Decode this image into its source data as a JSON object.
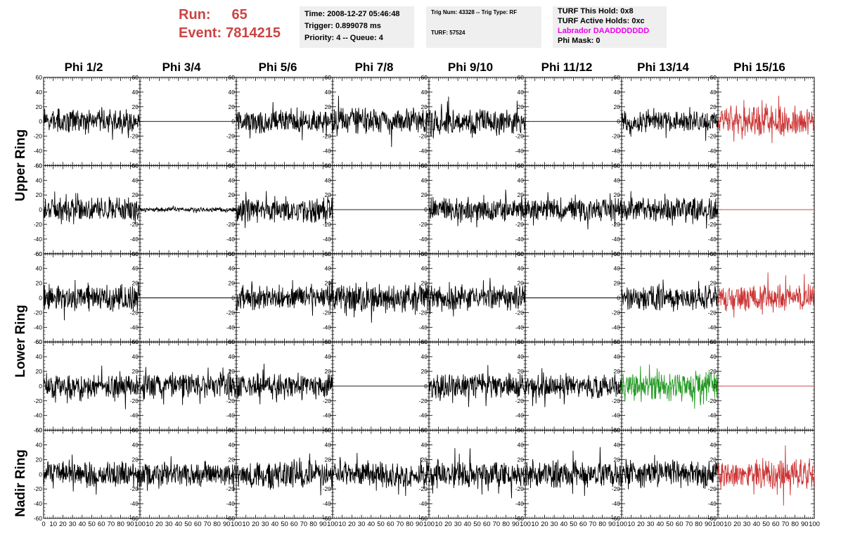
{
  "header": {
    "run_label": "Run:",
    "run_value": "65",
    "event_label": "Event:",
    "event_value": "7814215"
  },
  "info_time": {
    "time": "Time: 2008-12-27 05:46:48",
    "trigger": "Trigger: 0.899078 ms",
    "priority": "Priority: 4 -- Queue: 4"
  },
  "info_trig": {
    "trig": "Trig Num: 43328 -- Trig Type: RF",
    "turf": "TURF: 57524"
  },
  "info_turf": {
    "hold": "TURF This Hold: 0x8",
    "active": "TURF Active Holds: 0xc",
    "labrador": "Labrador DAADDDDDDD",
    "phimask": "Phi Mask: 0"
  },
  "colors": {
    "trace_default": "#000000",
    "trace_triggered": "#cc3333",
    "trace_green": "#229922",
    "labrador": "#ee00ee",
    "run_event": "#cc4444"
  },
  "columns": [
    "Phi 1/2",
    "Phi 3/4",
    "Phi 5/6",
    "Phi 7/8",
    "Phi 9/10",
    "Phi 11/12",
    "Phi 13/14",
    "Phi 15/16"
  ],
  "ring_labels": {
    "upper": "Upper Ring",
    "lower": "Lower Ring",
    "nadir": "Nadir Ring"
  },
  "chart_data": {
    "type": "line",
    "grid": false,
    "ylim": [
      -60,
      60
    ],
    "xlim": [
      0,
      100
    ],
    "yticks": [
      -60,
      -40,
      -20,
      0,
      20,
      40,
      60
    ],
    "xticks": [
      0,
      10,
      20,
      30,
      40,
      50,
      60,
      70,
      80,
      90,
      100
    ],
    "xtick_labels": [
      "0",
      "10",
      "20",
      "30",
      "40",
      "50",
      "60",
      "70",
      "80",
      "90",
      "100"
    ],
    "rows": 5,
    "cols": 8,
    "panels_note_style": "noise",
    "panels": [
      {
        "row": 0,
        "col": 0,
        "style": "noise",
        "amp": 16,
        "color": "default"
      },
      {
        "row": 0,
        "col": 1,
        "style": "flat",
        "amp": 0,
        "color": "default"
      },
      {
        "row": 0,
        "col": 2,
        "style": "noise",
        "amp": 16,
        "color": "default"
      },
      {
        "row": 0,
        "col": 3,
        "style": "noise",
        "amp": 18,
        "color": "default"
      },
      {
        "row": 0,
        "col": 4,
        "style": "noise",
        "amp": 18,
        "color": "default"
      },
      {
        "row": 0,
        "col": 5,
        "style": "flat",
        "amp": 0,
        "color": "default"
      },
      {
        "row": 0,
        "col": 6,
        "style": "noise",
        "amp": 14,
        "color": "default"
      },
      {
        "row": 0,
        "col": 7,
        "style": "noise",
        "amp": 22,
        "color": "triggered"
      },
      {
        "row": 1,
        "col": 0,
        "style": "noise",
        "amp": 16,
        "color": "default"
      },
      {
        "row": 1,
        "col": 1,
        "style": "noise",
        "amp": 3,
        "color": "default"
      },
      {
        "row": 1,
        "col": 2,
        "style": "noise",
        "amp": 17,
        "color": "default"
      },
      {
        "row": 1,
        "col": 3,
        "style": "flat",
        "amp": 0,
        "color": "default"
      },
      {
        "row": 1,
        "col": 4,
        "style": "noise",
        "amp": 16,
        "color": "default"
      },
      {
        "row": 1,
        "col": 5,
        "style": "noise",
        "amp": 16,
        "color": "default"
      },
      {
        "row": 1,
        "col": 6,
        "style": "noise",
        "amp": 16,
        "color": "default"
      },
      {
        "row": 1,
        "col": 7,
        "style": "flat",
        "amp": 0,
        "color": "triggered"
      },
      {
        "row": 2,
        "col": 0,
        "style": "noise",
        "amp": 18,
        "color": "default"
      },
      {
        "row": 2,
        "col": 1,
        "style": "flat",
        "amp": 0,
        "color": "default"
      },
      {
        "row": 2,
        "col": 2,
        "style": "noise",
        "amp": 16,
        "color": "default"
      },
      {
        "row": 2,
        "col": 3,
        "style": "noise",
        "amp": 20,
        "color": "default"
      },
      {
        "row": 2,
        "col": 4,
        "style": "noise",
        "amp": 17,
        "color": "default"
      },
      {
        "row": 2,
        "col": 5,
        "style": "flat",
        "amp": 0,
        "color": "default"
      },
      {
        "row": 2,
        "col": 6,
        "style": "noise",
        "amp": 16,
        "color": "default"
      },
      {
        "row": 2,
        "col": 7,
        "style": "noise",
        "amp": 18,
        "color": "triggered"
      },
      {
        "row": 3,
        "col": 0,
        "style": "noise",
        "amp": 16,
        "color": "default"
      },
      {
        "row": 3,
        "col": 1,
        "style": "noise",
        "amp": 17,
        "color": "default"
      },
      {
        "row": 3,
        "col": 2,
        "style": "noise",
        "amp": 17,
        "color": "default"
      },
      {
        "row": 3,
        "col": 3,
        "style": "flat",
        "amp": 0,
        "color": "default"
      },
      {
        "row": 3,
        "col": 4,
        "style": "noise",
        "amp": 17,
        "color": "default"
      },
      {
        "row": 3,
        "col": 5,
        "style": "noise",
        "amp": 16,
        "color": "default"
      },
      {
        "row": 3,
        "col": 6,
        "style": "noise",
        "amp": 20,
        "color": "green"
      },
      {
        "row": 3,
        "col": 7,
        "style": "flat",
        "amp": 0,
        "color": "triggered"
      },
      {
        "row": 4,
        "col": 0,
        "style": "noise",
        "amp": 18,
        "color": "default"
      },
      {
        "row": 4,
        "col": 1,
        "style": "noise",
        "amp": 16,
        "color": "default"
      },
      {
        "row": 4,
        "col": 2,
        "style": "noise",
        "amp": 18,
        "color": "default"
      },
      {
        "row": 4,
        "col": 3,
        "style": "noise",
        "amp": 18,
        "color": "default"
      },
      {
        "row": 4,
        "col": 4,
        "style": "noise",
        "amp": 18,
        "color": "default"
      },
      {
        "row": 4,
        "col": 5,
        "style": "noise",
        "amp": 18,
        "color": "default"
      },
      {
        "row": 4,
        "col": 6,
        "style": "noise",
        "amp": 18,
        "color": "default"
      },
      {
        "row": 4,
        "col": 7,
        "style": "noise",
        "amp": 20,
        "color": "triggered"
      }
    ]
  }
}
